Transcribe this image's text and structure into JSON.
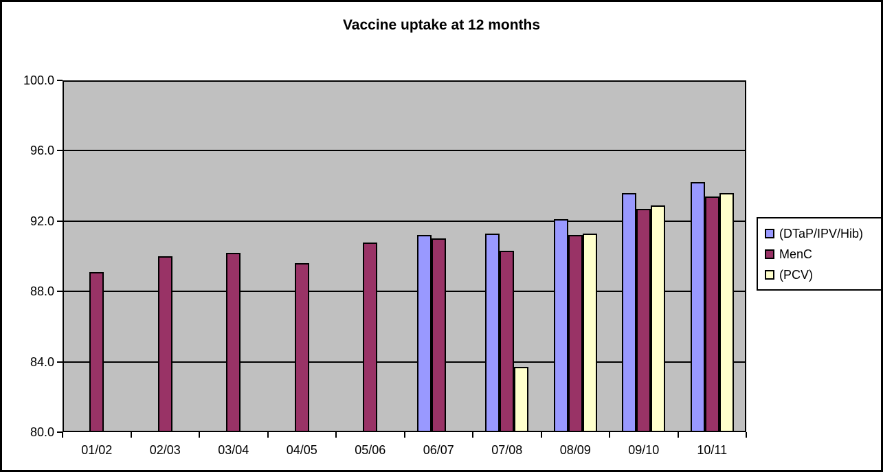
{
  "window": {
    "background_color": "#ffffff",
    "border_color": "#000000",
    "plot_background_color": "#c0c0c0",
    "gridline_color": "#000000"
  },
  "chart_data": {
    "type": "bar",
    "title": "Vaccine uptake at 12 months",
    "xlabel": "",
    "ylabel": "",
    "categories": [
      "01/02",
      "02/03",
      "03/04",
      "04/05",
      "05/06",
      "06/07",
      "07/08",
      "08/09",
      "09/10",
      "10/11"
    ],
    "series": [
      {
        "name": "(DTaP/IPV/Hib)",
        "color": "#9999ff",
        "values": [
          null,
          null,
          null,
          null,
          null,
          91.2,
          91.3,
          92.1,
          93.6,
          94.2
        ]
      },
      {
        "name": "MenC",
        "color": "#993366",
        "values": [
          89.1,
          90.0,
          90.2,
          89.6,
          90.8,
          91.0,
          90.3,
          91.2,
          92.7,
          93.4
        ]
      },
      {
        "name": "(PCV)",
        "color": "#ffffcc",
        "values": [
          null,
          null,
          null,
          null,
          null,
          null,
          83.7,
          91.3,
          92.9,
          93.6
        ]
      }
    ],
    "ylim": [
      80,
      100
    ],
    "ytick_step": 4,
    "ytick_labels": [
      "80.0",
      "84.0",
      "88.0",
      "92.0",
      "96.0",
      "100.0"
    ],
    "grid": true,
    "legend_position": "right"
  }
}
